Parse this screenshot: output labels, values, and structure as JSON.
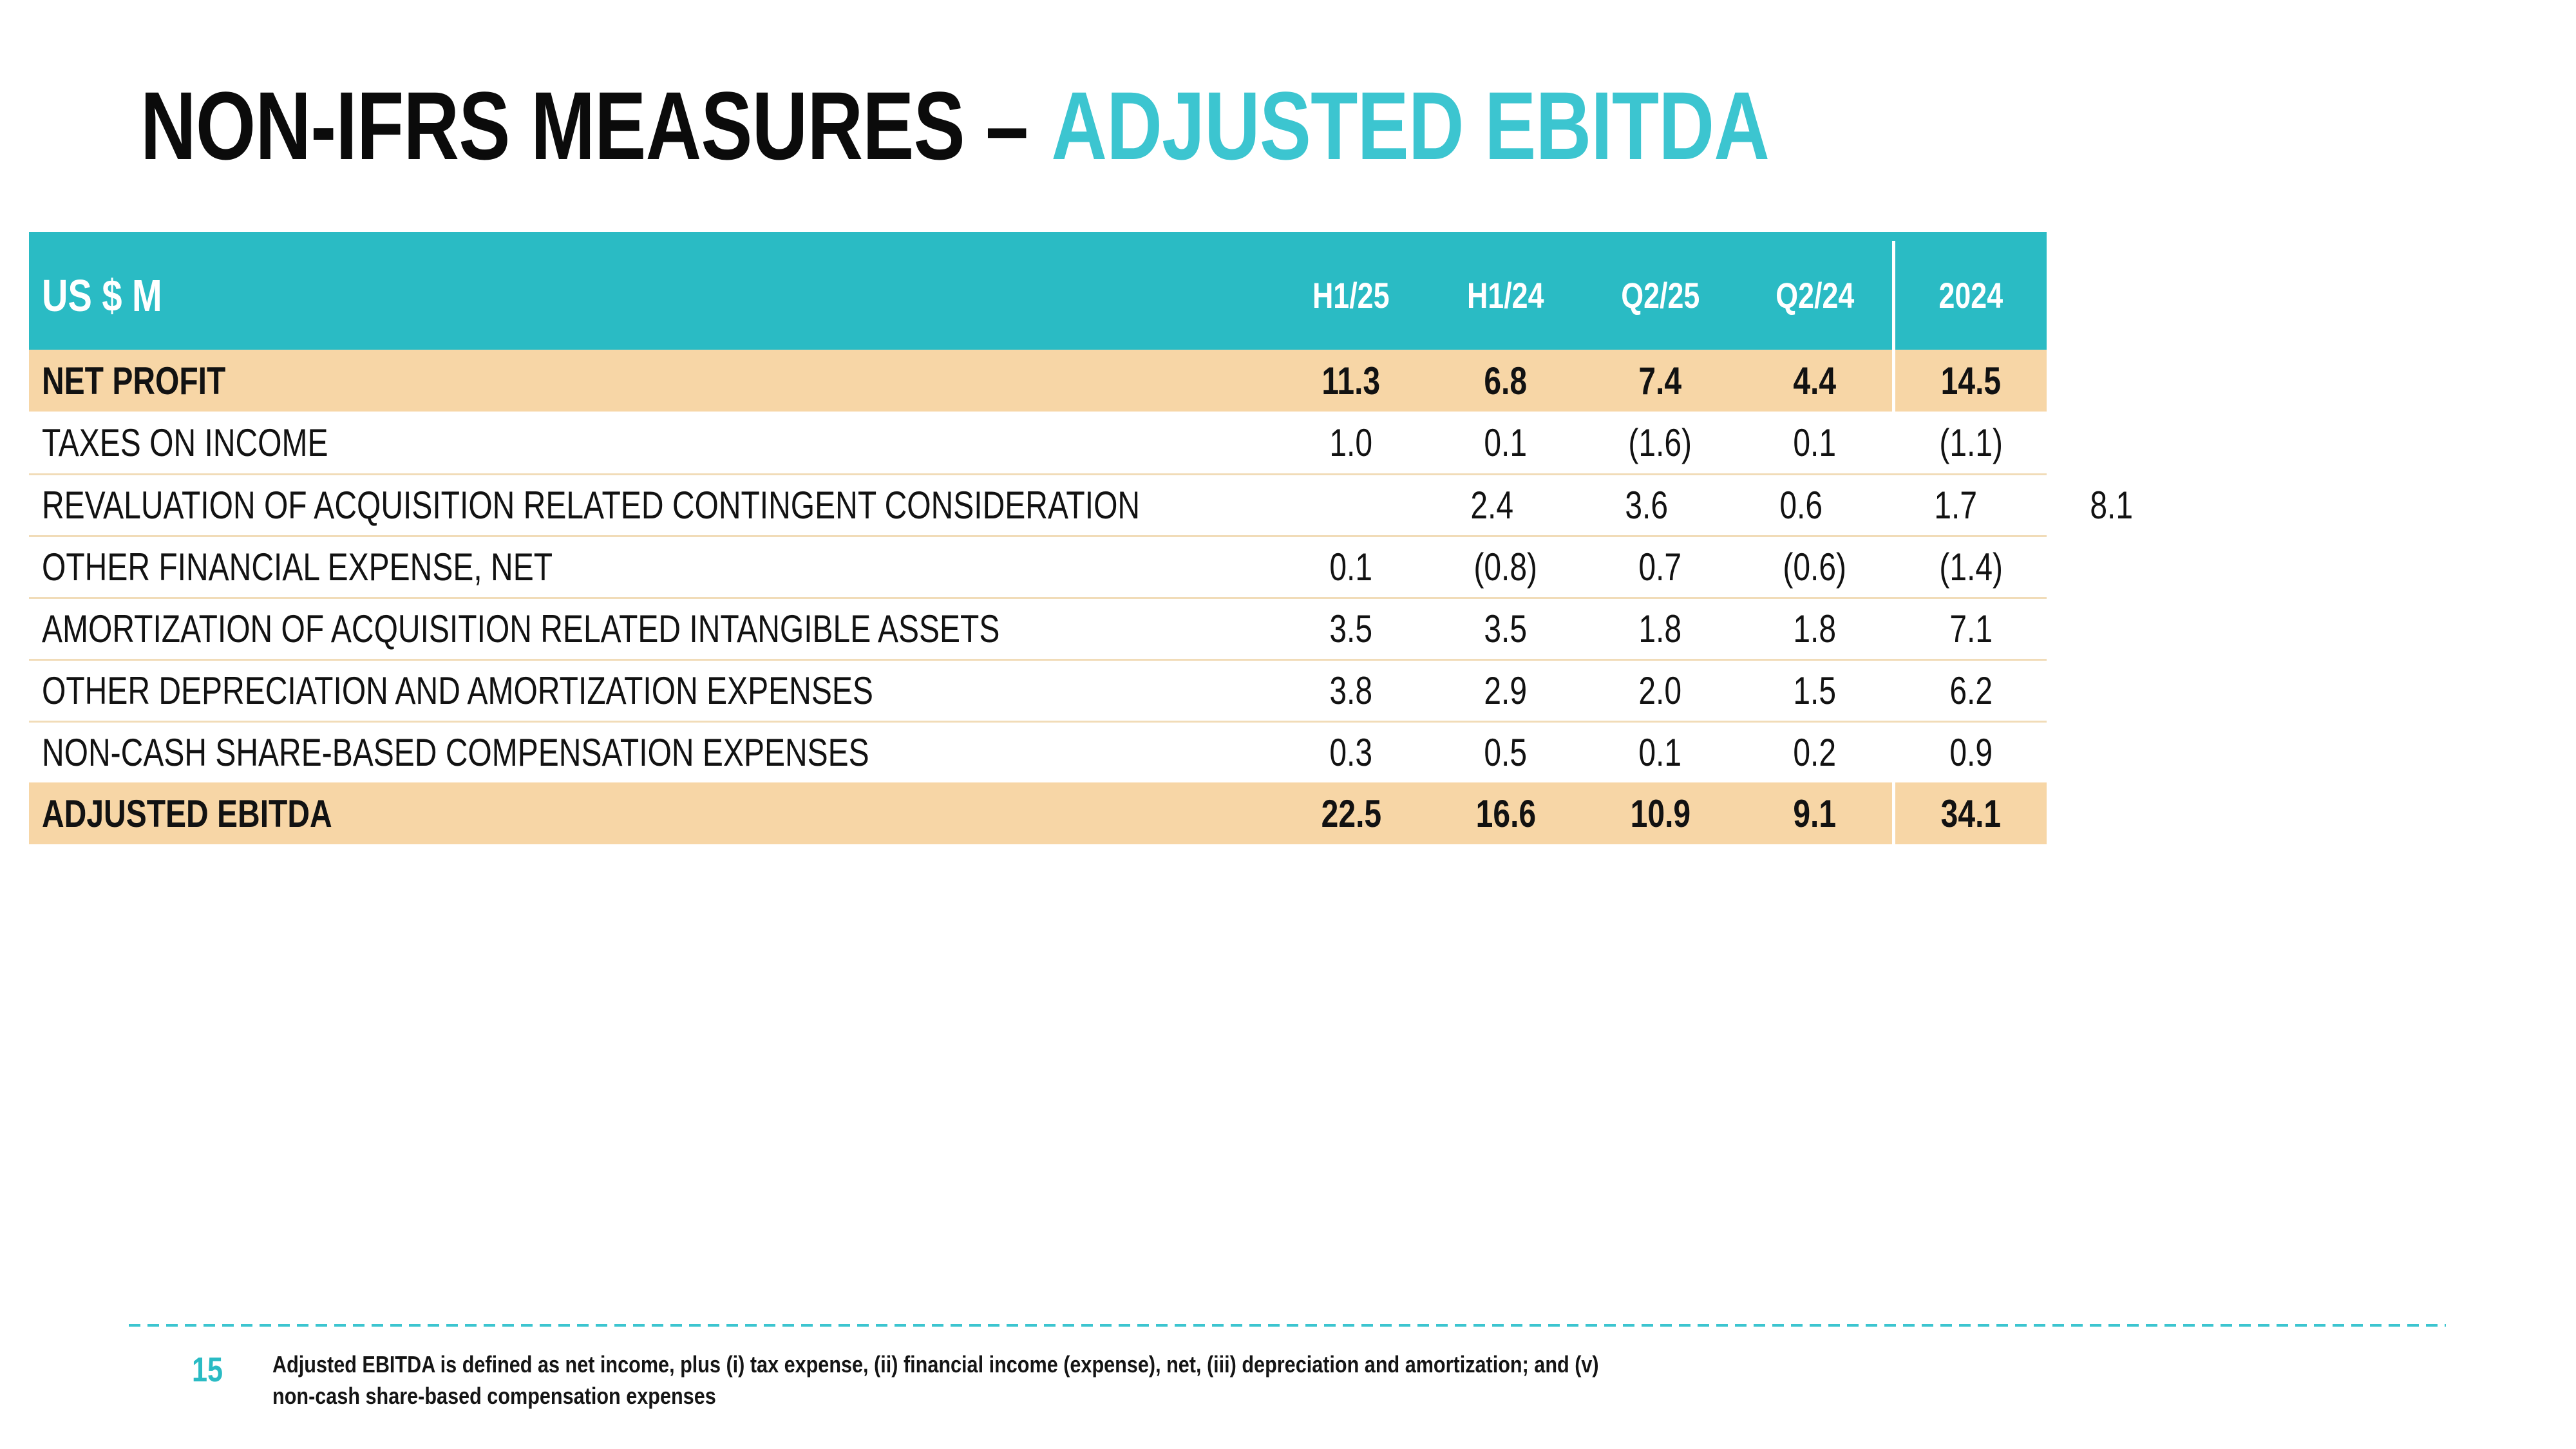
{
  "slide": {
    "title": {
      "black": "NON-IFRS MEASURES –",
      "accent": "ADJUSTED EBITDA"
    }
  },
  "table": {
    "unit_label": "US $ M",
    "columns": [
      "H1/25",
      "H1/24",
      "Q2/25",
      "Q2/24",
      "2024"
    ],
    "rows": [
      {
        "label": "NET PROFIT",
        "values": [
          "11.3",
          "6.8",
          "7.4",
          "4.4",
          "14.5"
        ],
        "highlight": true
      },
      {
        "label": "TAXES ON INCOME",
        "values": [
          "1.0",
          "0.1",
          "(1.6)",
          "0.1",
          "(1.1)"
        ],
        "highlight": false
      },
      {
        "label": "REVALUATION OF ACQUISITION RELATED CONTINGENT CONSIDERATION",
        "values": [
          "2.4",
          "3.6",
          "0.6",
          "1.7",
          "8.1"
        ],
        "highlight": false
      },
      {
        "label": "OTHER FINANCIAL EXPENSE, NET",
        "values": [
          "0.1",
          "(0.8)",
          "0.7",
          "(0.6)",
          "(1.4)"
        ],
        "highlight": false
      },
      {
        "label": "AMORTIZATION OF ACQUISITION RELATED INTANGIBLE ASSETS",
        "values": [
          "3.5",
          "3.5",
          "1.8",
          "1.8",
          "7.1"
        ],
        "highlight": false
      },
      {
        "label": "OTHER DEPRECIATION AND AMORTIZATION EXPENSES",
        "values": [
          "3.8",
          "2.9",
          "2.0",
          "1.5",
          "6.2"
        ],
        "highlight": false
      },
      {
        "label": "NON-CASH SHARE-BASED COMPENSATION EXPENSES",
        "values": [
          "0.3",
          "0.5",
          "0.1",
          "0.2",
          "0.9"
        ],
        "highlight": false
      },
      {
        "label": "ADJUSTED EBITDA",
        "values": [
          "22.5",
          "16.6",
          "10.9",
          "9.1",
          "34.1"
        ],
        "highlight": true
      }
    ]
  },
  "footer": {
    "page_number": "15",
    "note_lines": [
      "Adjusted EBITDA is defined as net income, plus (i) tax expense, (ii) financial income (expense), net, (iii) depreciation and amortization; and (v)",
      "non-cash share-based compensation expenses"
    ]
  },
  "colors": {
    "teal": "#2ABBC4",
    "teal-accent": "#3CC5D0",
    "orange": "#F7D6A6",
    "tan": "#F1DCB8",
    "ink": "#121212"
  }
}
